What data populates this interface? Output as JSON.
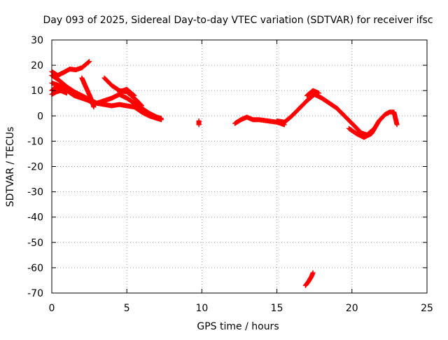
{
  "chart_data": {
    "type": "scatter",
    "title": "Day 093 of 2025, Sidereal Day-to-day VTEC variation (SDTVAR) for receiver ifsc",
    "xlabel": "GPS time / hours",
    "ylabel": "SDTVAR / TECUs",
    "xlim": [
      0,
      25
    ],
    "ylim": [
      -70,
      30
    ],
    "xticks": [
      0,
      5,
      10,
      15,
      20,
      25
    ],
    "yticks": [
      -70,
      -60,
      -50,
      -40,
      -30,
      -20,
      -10,
      0,
      10,
      20,
      30
    ],
    "grid": true,
    "legend": "none",
    "marker": "plus",
    "color": "#ff0000",
    "tracks": [
      [
        [
          0.0,
          17.5
        ],
        [
          0.4,
          16.0
        ],
        [
          0.8,
          17.2
        ],
        [
          1.2,
          18.5
        ],
        [
          1.6,
          18.2
        ],
        [
          2.0,
          19.0
        ],
        [
          2.5,
          21.5
        ]
      ],
      [
        [
          0.0,
          16.0
        ],
        [
          0.5,
          14.0
        ],
        [
          1.0,
          11.5
        ],
        [
          1.5,
          9.5
        ],
        [
          2.0,
          8.0
        ],
        [
          2.5,
          6.5
        ],
        [
          3.0,
          5.0
        ],
        [
          3.5,
          4.5
        ],
        [
          4.0,
          4.0
        ],
        [
          4.5,
          4.5
        ],
        [
          5.0,
          4.0
        ],
        [
          5.5,
          3.5
        ],
        [
          6.0,
          1.5
        ],
        [
          6.5,
          0.0
        ],
        [
          7.0,
          -1.0
        ],
        [
          7.3,
          -1.5
        ]
      ],
      [
        [
          0.0,
          13.0
        ],
        [
          0.5,
          12.0
        ],
        [
          1.0,
          10.0
        ],
        [
          1.5,
          8.0
        ],
        [
          2.0,
          7.0
        ],
        [
          2.5,
          6.0
        ],
        [
          3.0,
          5.0
        ],
        [
          3.5,
          6.0
        ],
        [
          4.0,
          7.0
        ],
        [
          4.5,
          8.5
        ],
        [
          5.0,
          7.0
        ],
        [
          5.5,
          5.0
        ],
        [
          6.0,
          3.0
        ],
        [
          6.5,
          1.0
        ],
        [
          7.0,
          -0.5
        ],
        [
          7.3,
          -1.0
        ]
      ],
      [
        [
          0.0,
          10.0
        ],
        [
          0.3,
          11.5
        ],
        [
          0.7,
          11.0
        ],
        [
          1.2,
          9.5
        ],
        [
          1.8,
          8.0
        ],
        [
          2.3,
          6.5
        ],
        [
          2.8,
          5.0
        ]
      ],
      [
        [
          0.0,
          8.5
        ],
        [
          0.3,
          9.5
        ],
        [
          0.6,
          10.0
        ],
        [
          1.0,
          9.0
        ]
      ],
      [
        [
          2.0,
          15.0
        ],
        [
          2.3,
          11.0
        ],
        [
          2.6,
          7.0
        ],
        [
          2.8,
          3.5
        ]
      ],
      [
        [
          3.5,
          15.0
        ],
        [
          4.0,
          12.0
        ],
        [
          4.5,
          10.0
        ],
        [
          5.0,
          9.5
        ],
        [
          5.5,
          7.0
        ],
        [
          6.0,
          4.0
        ]
      ],
      [
        [
          4.5,
          9.5
        ],
        [
          5.0,
          10.5
        ],
        [
          5.5,
          8.0
        ]
      ],
      [
        [
          9.8,
          -2.0
        ],
        [
          9.8,
          -3.5
        ]
      ],
      [
        [
          12.2,
          -3.0
        ],
        [
          12.6,
          -1.5
        ],
        [
          13.0,
          -0.5
        ],
        [
          13.4,
          -1.5
        ],
        [
          13.8,
          -1.5
        ],
        [
          14.4,
          -2.0
        ],
        [
          15.0,
          -2.5
        ],
        [
          15.5,
          -3.5
        ]
      ],
      [
        [
          15.0,
          -2.0
        ],
        [
          15.5,
          -2.5
        ],
        [
          16.0,
          0.0
        ],
        [
          16.5,
          3.0
        ],
        [
          17.0,
          6.0
        ],
        [
          17.5,
          8.5
        ],
        [
          18.0,
          7.0
        ],
        [
          18.5,
          5.0
        ],
        [
          19.0,
          3.0
        ],
        [
          19.5,
          0.0
        ],
        [
          20.0,
          -3.0
        ],
        [
          20.5,
          -6.0
        ],
        [
          20.8,
          -8.0
        ]
      ],
      [
        [
          17.0,
          8.0
        ],
        [
          17.4,
          10.0
        ],
        [
          17.8,
          9.0
        ]
      ],
      [
        [
          19.8,
          -5.0
        ],
        [
          20.3,
          -7.0
        ],
        [
          20.8,
          -8.5
        ],
        [
          21.3,
          -7.0
        ],
        [
          21.8,
          -2.0
        ],
        [
          22.2,
          0.5
        ],
        [
          22.5,
          1.5
        ],
        [
          22.8,
          1.5
        ],
        [
          23.0,
          -3.5
        ]
      ],
      [
        [
          20.5,
          -6.5
        ],
        [
          21.0,
          -7.5
        ],
        [
          21.5,
          -5.0
        ]
      ],
      [
        [
          16.9,
          -67.0
        ],
        [
          17.1,
          -65.5
        ],
        [
          17.3,
          -63.5
        ],
        [
          17.4,
          -62.0
        ]
      ]
    ]
  }
}
